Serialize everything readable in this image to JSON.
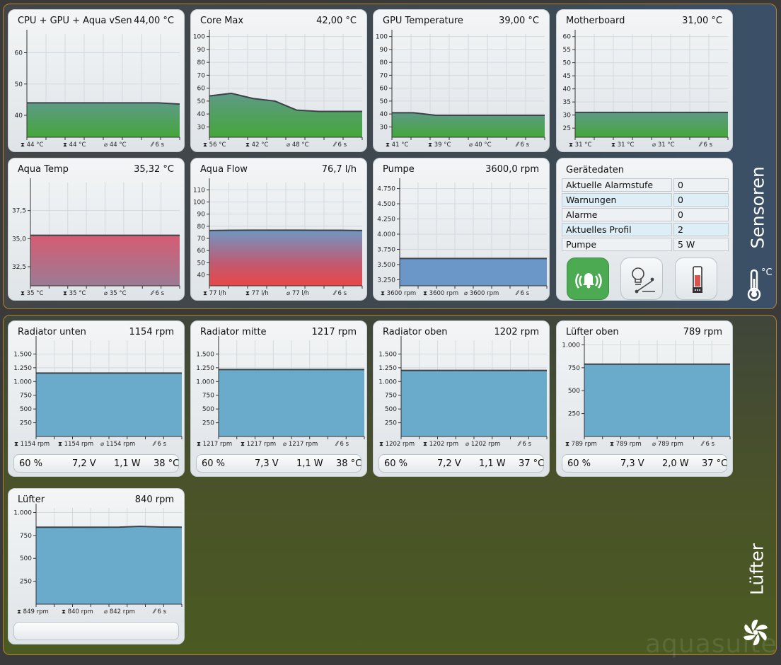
{
  "sections": {
    "sensors": {
      "label": "Sensoren",
      "unit": "°C"
    },
    "fans": {
      "label": "Lüfter"
    }
  },
  "watermark": "aquasuite",
  "colors": {
    "green": "#4ea53d",
    "blue": "#6699c8",
    "red": "#e05050",
    "fan": "#6aabcb"
  },
  "panels": {
    "cpu": {
      "title": "CPU + GPU + Aqua vSen",
      "value": "44,00 °C",
      "stats": {
        "max": "44 °C",
        "min": "44 °C",
        "avg": "44 °C",
        "interval": "6 s"
      }
    },
    "coremax": {
      "title": "Core Max",
      "value": "42,00 °C",
      "stats": {
        "max": "56 °C",
        "min": "42 °C",
        "avg": "48 °C",
        "interval": "6 s"
      }
    },
    "gpu": {
      "title": "GPU Temperature",
      "value": "39,00 °C",
      "stats": {
        "max": "41 °C",
        "min": "39 °C",
        "avg": "40 °C",
        "interval": "6 s"
      }
    },
    "mobo": {
      "title": "Motherboard",
      "value": "31,00 °C",
      "stats": {
        "max": "31 °C",
        "min": "31 °C",
        "avg": "31 °C",
        "interval": "6 s"
      }
    },
    "aquatemp": {
      "title": "Aqua Temp",
      "value": "35,32 °C",
      "stats": {
        "max": "35 °C",
        "min": "35 °C",
        "avg": "35 °C",
        "interval": "6 s"
      }
    },
    "aquaflow": {
      "title": "Aqua Flow",
      "value": "76,7 l/h",
      "stats": {
        "max": "77 l/h",
        "min": "77 l/h",
        "avg": "77 l/h",
        "interval": "6 s"
      }
    },
    "pump": {
      "title": "Pumpe",
      "value": "3600,0 rpm",
      "stats": {
        "max": "3600 rpm",
        "min": "3600 rpm",
        "avg": "3600 rpm",
        "interval": "6 s"
      }
    },
    "rad_unten": {
      "title": "Radiator unten",
      "value": "1154 rpm",
      "stats": {
        "max": "1154 rpm",
        "min": "1154 rpm",
        "avg": "1154 rpm",
        "interval": "6 s"
      },
      "info": {
        "percent": "60 %",
        "voltage": "7,2 V",
        "power": "1,1 W",
        "temp": "38 °C"
      }
    },
    "rad_mitte": {
      "title": "Radiator mitte",
      "value": "1217 rpm",
      "stats": {
        "max": "1217 rpm",
        "min": "1217 rpm",
        "avg": "1217 rpm",
        "interval": "6 s"
      },
      "info": {
        "percent": "60 %",
        "voltage": "7,3 V",
        "power": "1,1 W",
        "temp": "38 °C"
      }
    },
    "rad_oben": {
      "title": "Radiator oben",
      "value": "1202 rpm",
      "stats": {
        "max": "1202 rpm",
        "min": "1202 rpm",
        "avg": "1202 rpm",
        "interval": "6 s"
      },
      "info": {
        "percent": "60 %",
        "voltage": "7,2 V",
        "power": "1,1 W",
        "temp": "37 °C"
      }
    },
    "luefter_oben": {
      "title": "Lüfter oben",
      "value": "789 rpm",
      "stats": {
        "max": "789 rpm",
        "min": "789 rpm",
        "avg": "789 rpm",
        "interval": "6 s"
      },
      "info": {
        "percent": "60 %",
        "voltage": "7,3 V",
        "power": "2,0 W",
        "temp": "37 °C"
      }
    },
    "luefter": {
      "title": "Lüfter",
      "value": "840 rpm",
      "stats": {
        "max": "849 rpm",
        "min": "840 rpm",
        "avg": "842 rpm",
        "interval": "6 s"
      }
    }
  },
  "device": {
    "title": "Gerätedaten",
    "rows": [
      {
        "label": "Aktuelle Alarmstufe",
        "value": "0"
      },
      {
        "label": "Warnungen",
        "value": "0"
      },
      {
        "label": "Alarme",
        "value": "0"
      },
      {
        "label": "Aktuelles Profil",
        "value": "2"
      },
      {
        "label": "Pumpe",
        "value": "5 W"
      }
    ]
  },
  "chart_data": [
    {
      "id": "cpu",
      "type": "area",
      "title": "CPU + GPU + Aqua vSen",
      "fill": "green",
      "ylim": [
        33,
        66
      ],
      "yticks": [
        {
          "v": 40,
          "t": "40"
        },
        {
          "v": 50,
          "t": "50"
        },
        {
          "v": 60,
          "t": "60"
        }
      ],
      "values": [
        44,
        44,
        44,
        44,
        44,
        44,
        44,
        43.6
      ]
    },
    {
      "id": "coremax",
      "type": "area",
      "title": "Core Max",
      "fill": "green",
      "ylim": [
        22,
        102
      ],
      "yticks": [
        {
          "v": 30,
          "t": "30"
        },
        {
          "v": 40,
          "t": "40"
        },
        {
          "v": 50,
          "t": "50"
        },
        {
          "v": 60,
          "t": "60"
        },
        {
          "v": 70,
          "t": "70"
        },
        {
          "v": 80,
          "t": "80"
        },
        {
          "v": 90,
          "t": "90"
        },
        {
          "v": 100,
          "t": "100"
        }
      ],
      "values": [
        54,
        56,
        52,
        50,
        43,
        42,
        42,
        42
      ]
    },
    {
      "id": "gpu",
      "type": "area",
      "title": "GPU Temperature",
      "fill": "green",
      "ylim": [
        22,
        102
      ],
      "yticks": [
        {
          "v": 30,
          "t": "30"
        },
        {
          "v": 40,
          "t": "40"
        },
        {
          "v": 50,
          "t": "50"
        },
        {
          "v": 60,
          "t": "60"
        },
        {
          "v": 70,
          "t": "70"
        },
        {
          "v": 80,
          "t": "80"
        },
        {
          "v": 90,
          "t": "90"
        },
        {
          "v": 100,
          "t": "100"
        }
      ],
      "values": [
        41,
        41,
        39,
        39,
        39,
        39,
        39,
        39
      ]
    },
    {
      "id": "mobo",
      "type": "area",
      "title": "Motherboard",
      "fill": "green",
      "ylim": [
        21.5,
        61
      ],
      "yticks": [
        {
          "v": 25,
          "t": "25"
        },
        {
          "v": 30,
          "t": "30"
        },
        {
          "v": 35,
          "t": "35"
        },
        {
          "v": 40,
          "t": "40"
        },
        {
          "v": 45,
          "t": "45"
        },
        {
          "v": 50,
          "t": "50"
        },
        {
          "v": 55,
          "t": "55"
        },
        {
          "v": 60,
          "t": "60"
        }
      ],
      "values": [
        31,
        31,
        31,
        31,
        31,
        31,
        31,
        31
      ]
    },
    {
      "id": "aquatemp",
      "type": "area",
      "title": "Aqua Temp",
      "fill": "red",
      "ylim": [
        30.8,
        40.0
      ],
      "yticks": [
        {
          "v": 32.5,
          "t": "32,5"
        },
        {
          "v": 35.0,
          "t": "35,0"
        },
        {
          "v": 37.5,
          "t": "37,5"
        }
      ],
      "values": [
        35.3,
        35.3,
        35.3,
        35.3,
        35.3,
        35.3,
        35.3,
        35.3
      ]
    },
    {
      "id": "aquaflow",
      "type": "area",
      "title": "Aqua Flow",
      "fill": "flow",
      "ylim": [
        31,
        116
      ],
      "yticks": [
        {
          "v": 40,
          "t": "40"
        },
        {
          "v": 50,
          "t": "50"
        },
        {
          "v": 60,
          "t": "60"
        },
        {
          "v": 70,
          "t": "70"
        },
        {
          "v": 80,
          "t": "80"
        },
        {
          "v": 90,
          "t": "90"
        },
        {
          "v": 100,
          "t": "100"
        },
        {
          "v": 110,
          "t": "110"
        }
      ],
      "values": [
        76.5,
        76.7,
        76.8,
        76.8,
        76.8,
        76.7,
        76.7,
        76.5
      ]
    },
    {
      "id": "pump",
      "type": "area",
      "title": "Pumpe",
      "fill": "blue",
      "ylim": [
        3150,
        4850
      ],
      "yticks": [
        {
          "v": 3250,
          "t": "3.250"
        },
        {
          "v": 3500,
          "t": "3.500"
        },
        {
          "v": 3750,
          "t": "3.750"
        },
        {
          "v": 4000,
          "t": "4.000"
        },
        {
          "v": 4250,
          "t": "4.250"
        },
        {
          "v": 4500,
          "t": "4.500"
        },
        {
          "v": 4750,
          "t": "4.750"
        }
      ],
      "values": [
        3600,
        3600,
        3600,
        3600,
        3600,
        3600,
        3600,
        3600
      ]
    },
    {
      "id": "rad_unten",
      "type": "area",
      "title": "Radiator unten",
      "fill": "fan",
      "ylim": [
        0,
        1750
      ],
      "yticks": [
        {
          "v": 250,
          "t": "250"
        },
        {
          "v": 500,
          "t": "500"
        },
        {
          "v": 750,
          "t": "750"
        },
        {
          "v": 1000,
          "t": "1.000"
        },
        {
          "v": 1250,
          "t": "1.250"
        },
        {
          "v": 1500,
          "t": "1.500"
        }
      ],
      "values": [
        1154,
        1154,
        1154,
        1154,
        1154,
        1154,
        1154,
        1154
      ]
    },
    {
      "id": "rad_mitte",
      "type": "area",
      "title": "Radiator mitte",
      "fill": "fan",
      "ylim": [
        0,
        1750
      ],
      "yticks": [
        {
          "v": 250,
          "t": "250"
        },
        {
          "v": 500,
          "t": "500"
        },
        {
          "v": 750,
          "t": "750"
        },
        {
          "v": 1000,
          "t": "1.000"
        },
        {
          "v": 1250,
          "t": "1.250"
        },
        {
          "v": 1500,
          "t": "1.500"
        }
      ],
      "values": [
        1217,
        1217,
        1217,
        1217,
        1217,
        1217,
        1217,
        1217
      ]
    },
    {
      "id": "rad_oben",
      "type": "area",
      "title": "Radiator oben",
      "fill": "fan",
      "ylim": [
        0,
        1750
      ],
      "yticks": [
        {
          "v": 250,
          "t": "250"
        },
        {
          "v": 500,
          "t": "500"
        },
        {
          "v": 750,
          "t": "750"
        },
        {
          "v": 1000,
          "t": "1.000"
        },
        {
          "v": 1250,
          "t": "1.250"
        },
        {
          "v": 1500,
          "t": "1.500"
        }
      ],
      "values": [
        1202,
        1202,
        1202,
        1202,
        1202,
        1202,
        1202,
        1202
      ]
    },
    {
      "id": "luefter_oben",
      "type": "area",
      "title": "Lüfter oben",
      "fill": "fan",
      "ylim": [
        0,
        1050
      ],
      "yticks": [
        {
          "v": 250,
          "t": "250"
        },
        {
          "v": 500,
          "t": "500"
        },
        {
          "v": 750,
          "t": "750"
        },
        {
          "v": 1000,
          "t": "1.000"
        }
      ],
      "values": [
        789,
        789,
        789,
        789,
        789,
        789,
        789,
        789
      ]
    },
    {
      "id": "luefter",
      "type": "area",
      "title": "Lüfter",
      "fill": "fan",
      "ylim": [
        0,
        1050
      ],
      "yticks": [
        {
          "v": 250,
          "t": "250"
        },
        {
          "v": 500,
          "t": "500"
        },
        {
          "v": 750,
          "t": "750"
        },
        {
          "v": 1000,
          "t": "1.000"
        }
      ],
      "values": [
        840,
        840,
        840,
        840,
        841,
        849,
        842,
        840
      ]
    }
  ]
}
